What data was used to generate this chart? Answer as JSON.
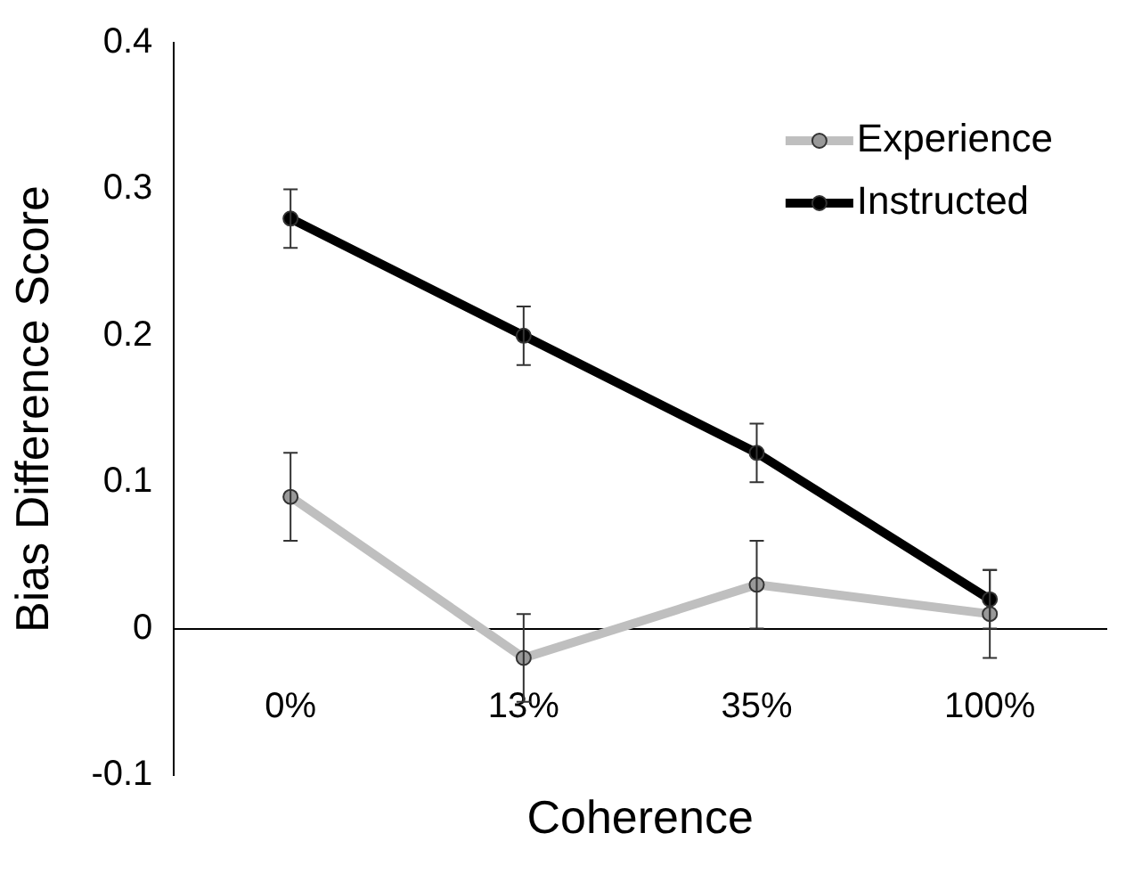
{
  "chart_data": {
    "type": "line",
    "xlabel": "Coherence",
    "ylabel": "Bias Difference Score",
    "categories": [
      "0%",
      "13%",
      "35%",
      "100%"
    ],
    "series": [
      {
        "name": "Experience",
        "color": "#bfbfbf",
        "values": [
          0.09,
          -0.02,
          0.03,
          0.01
        ],
        "errors": [
          0.03,
          0.03,
          0.03,
          0.03
        ]
      },
      {
        "name": "Instructed",
        "color": "#000000",
        "values": [
          0.28,
          0.2,
          0.12,
          0.02
        ],
        "errors": [
          0.02,
          0.02,
          0.02,
          0.02
        ]
      }
    ],
    "ylim": [
      -0.1,
      0.4
    ],
    "yticks": [
      -0.1,
      0,
      0.1,
      0.2,
      0.3,
      0.4
    ],
    "grid": false,
    "legend": "top right",
    "marker": "circle",
    "line_style": "solid"
  }
}
